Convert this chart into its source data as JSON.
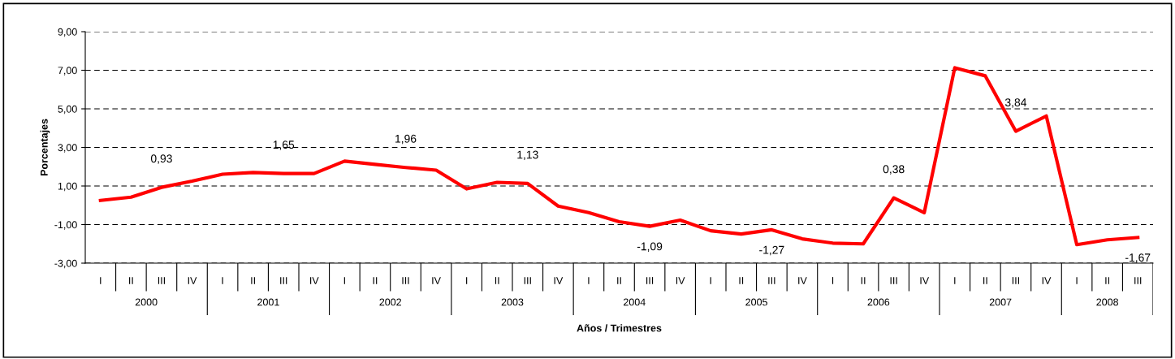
{
  "chart_data": {
    "type": "line",
    "xlabel": "Años / Trimestres",
    "ylabel": "Porcentajes",
    "categories": [
      "I",
      "II",
      "III",
      "IV",
      "I",
      "II",
      "III",
      "IV",
      "I",
      "II",
      "III",
      "IV",
      "I",
      "II",
      "III",
      "IV",
      "I",
      "II",
      "III",
      "IV",
      "I",
      "II",
      "III",
      "IV",
      "I",
      "II",
      "III",
      "IV",
      "I",
      "II",
      "III",
      "IV",
      "I",
      "II",
      "III"
    ],
    "series": [
      {
        "color": "#ff0000",
        "values": [
          0.25,
          0.42,
          0.93,
          1.25,
          1.61,
          1.7,
          1.65,
          1.65,
          2.29,
          2.12,
          1.96,
          1.82,
          0.85,
          1.19,
          1.13,
          -0.04,
          -0.38,
          -0.85,
          -1.09,
          -0.77,
          -1.32,
          -1.49,
          -1.27,
          -1.74,
          -1.96,
          -2.0,
          0.38,
          -0.38,
          7.13,
          6.71,
          3.84,
          4.63,
          -2.04,
          -1.79,
          -1.67
        ],
        "value_labels": [
          null,
          null,
          "0,93",
          null,
          null,
          null,
          "1,65",
          null,
          null,
          null,
          "1,96",
          null,
          null,
          null,
          "1,13",
          null,
          null,
          null,
          "-1,09",
          null,
          null,
          null,
          "-1,27",
          null,
          null,
          null,
          "0,38",
          null,
          null,
          null,
          "3,84",
          null,
          null,
          null,
          "-1,67"
        ]
      }
    ],
    "ylim": [
      -3,
      9
    ],
    "yticks": [
      {
        "value": -3,
        "label": "-3,00"
      },
      {
        "value": -1,
        "label": "-1,00"
      },
      {
        "value": 1,
        "label": "1,00"
      },
      {
        "value": 3,
        "label": "3,00"
      },
      {
        "value": 5,
        "label": "5,00"
      },
      {
        "value": 7,
        "label": "7,00"
      },
      {
        "value": 9,
        "label": "9,00"
      }
    ],
    "grid": "y",
    "marker": "none",
    "line_style": "solid",
    "annotations": [
      "2000",
      "2001",
      "2002",
      "2003",
      "2004",
      "2005",
      "2006",
      "2007",
      "2008"
    ]
  }
}
